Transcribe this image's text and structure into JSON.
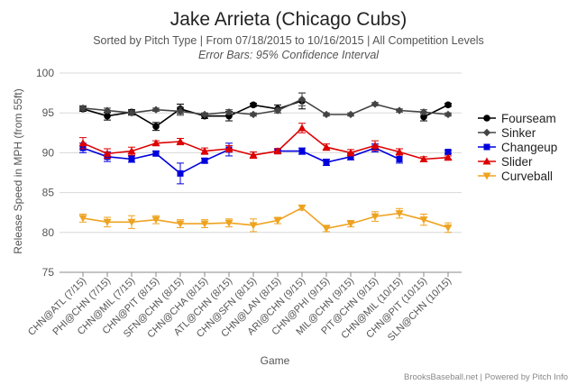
{
  "chart_data": {
    "type": "line",
    "title": "Jake Arrieta (Chicago Cubs)",
    "subtitle": "Sorted by Pitch Type | From 07/18/2015 to 10/16/2015 | All Competition Levels",
    "subtitle2": "Error Bars: 95% Confidence Interval",
    "xlabel": "Game",
    "ylabel": "Release Speed in MPH (from 55ft)",
    "ylim": [
      75,
      100
    ],
    "yticks": [
      "75",
      "80",
      "85",
      "90",
      "95",
      "100"
    ],
    "categories": [
      "CHN@ATL (7/15)",
      "PHI@CHN (7/15)",
      "CHN@MIL (7/15)",
      "CHN@PIT (8/15)",
      "SFN@CHN (8/15)",
      "CHN@CHA (8/15)",
      "ATL@CHN (8/15)",
      "CHN@SFN (8/15)",
      "CHN@LAN (8/15)",
      "ARI@CHN (9/15)",
      "CHN@PHI (9/15)",
      "MIL@CHN (9/15)",
      "PIT@CHN (9/15)",
      "CHN@MIL (10/15)",
      "CHN@PIT (10/15)",
      "SLN@CHN (10/15)"
    ],
    "series": [
      {
        "name": "Fourseam",
        "color": "#000000",
        "marker": "circle",
        "values": [
          95.5,
          94.6,
          95.1,
          93.3,
          95.5,
          94.6,
          94.6,
          96.0,
          95.5,
          96.5,
          null,
          null,
          null,
          null,
          94.5,
          96.0
        ],
        "errors": [
          0.3,
          0.5,
          0.3,
          0.5,
          0.6,
          0.3,
          0.6,
          0.2,
          0.5,
          1.0,
          null,
          null,
          null,
          null,
          0.5,
          0.2
        ]
      },
      {
        "name": "Sinker",
        "color": "#444444",
        "marker": "diamond",
        "values": [
          95.6,
          95.3,
          95.0,
          95.4,
          95.2,
          94.8,
          95.1,
          94.8,
          95.3,
          96.7,
          94.8,
          94.8,
          96.1,
          95.3,
          95.1,
          94.8
        ],
        "errors": [
          0.3,
          0.3,
          0.3,
          0.2,
          0.5,
          0.2,
          0.3,
          0.2,
          0.3,
          0.8,
          0.2,
          0.2,
          0.2,
          0.2,
          0.3,
          0.2
        ]
      },
      {
        "name": "Changeup",
        "color": "#0000dd",
        "marker": "square",
        "values": [
          90.6,
          89.5,
          89.2,
          89.9,
          87.4,
          89.0,
          90.4,
          null,
          90.2,
          90.2,
          88.8,
          89.5,
          90.6,
          89.2,
          null,
          90.1
        ],
        "errors": [
          0.6,
          0.6,
          0.4,
          0.3,
          1.3,
          0.3,
          0.8,
          null,
          0.2,
          0.4,
          0.4,
          0.4,
          0.5,
          0.5,
          null,
          0.2
        ]
      },
      {
        "name": "Slider",
        "color": "#dd0000",
        "marker": "triangle",
        "values": [
          91.2,
          89.9,
          90.2,
          91.2,
          91.4,
          90.2,
          90.5,
          89.7,
          90.2,
          93.1,
          90.7,
          90.0,
          90.9,
          90.1,
          89.2,
          89.4
        ],
        "errors": [
          0.7,
          0.6,
          0.5,
          0.3,
          0.4,
          0.4,
          0.4,
          0.4,
          0.3,
          0.6,
          0.4,
          0.4,
          0.6,
          0.4,
          0.3,
          0.2
        ]
      },
      {
        "name": "Curveball",
        "color": "#eea320",
        "marker": "triangle-down",
        "values": [
          81.8,
          81.3,
          81.3,
          81.6,
          81.1,
          81.1,
          81.2,
          80.9,
          81.5,
          83.1,
          80.5,
          81.1,
          82.0,
          82.4,
          81.6,
          80.6
        ],
        "errors": [
          0.5,
          0.6,
          0.8,
          0.5,
          0.5,
          0.5,
          0.5,
          0.8,
          0.4,
          0.3,
          0.4,
          0.4,
          0.6,
          0.6,
          0.7,
          0.6
        ]
      }
    ]
  },
  "credit": "BrooksBaseball.net | Powered by Pitch Info"
}
